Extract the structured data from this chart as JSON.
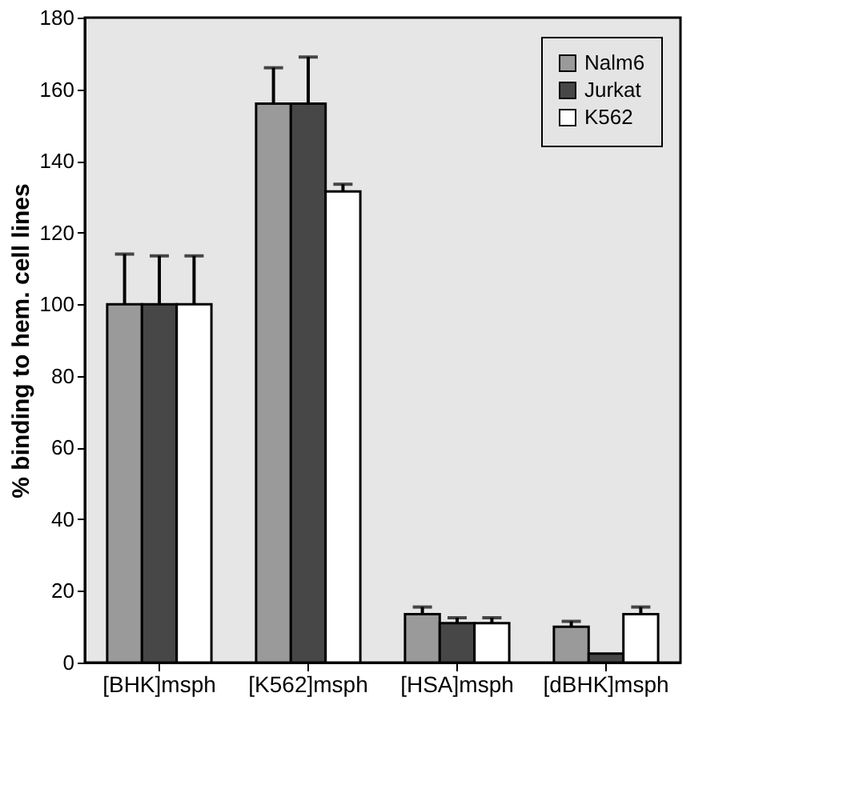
{
  "chart_data": {
    "type": "bar",
    "ylabel": "% binding to hem. cell lines",
    "categories": [
      "[BHK]msph",
      "[K562]msph",
      "[HSA]msph",
      "[dBHK]msph"
    ],
    "series": [
      {
        "name": "Nalm6",
        "color": "#9a9a9a",
        "values": [
          100,
          156,
          13.5,
          10
        ],
        "errors": [
          [
            100,
            114
          ],
          [
            156,
            166
          ],
          [
            13.5,
            15.5
          ],
          [
            10,
            11.5
          ]
        ]
      },
      {
        "name": "Jurkat",
        "color": "#474747",
        "values": [
          100,
          156,
          11,
          2.5
        ],
        "errors": [
          [
            100,
            113.5
          ],
          [
            156,
            169
          ],
          [
            11,
            12.5
          ],
          null
        ]
      },
      {
        "name": "K562",
        "color": "#ffffff",
        "values": [
          100,
          131.5,
          11,
          13.5
        ],
        "errors": [
          [
            100,
            113.5
          ],
          [
            131.5,
            133.5
          ],
          [
            11,
            12.5
          ],
          [
            13.5,
            15.5
          ]
        ]
      }
    ],
    "ylim": [
      0,
      180
    ],
    "yticks": [
      0,
      20,
      40,
      60,
      80,
      100,
      120,
      140,
      160,
      180
    ],
    "grid": false,
    "legend": "top right"
  }
}
